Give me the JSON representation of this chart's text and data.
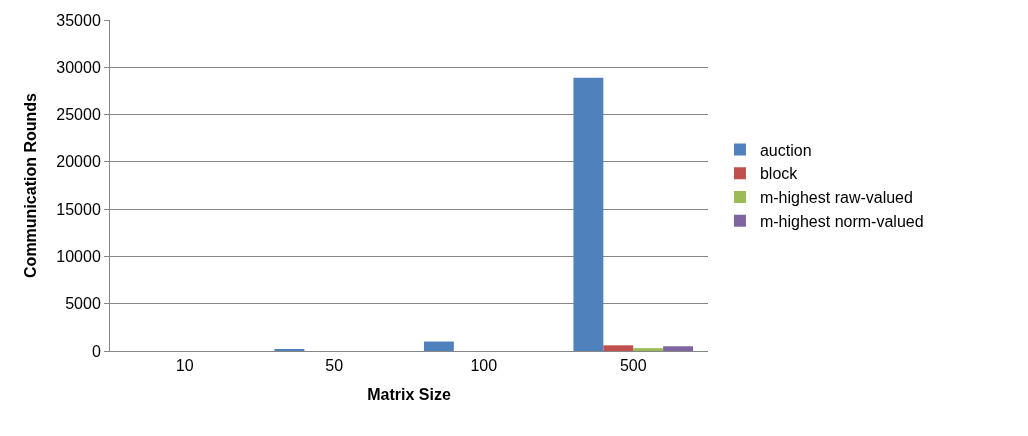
{
  "chart_data": {
    "type": "bar",
    "xlabel": "Matrix Size",
    "ylabel": "Communication Rounds",
    "categories": [
      "10",
      "50",
      "100",
      "500"
    ],
    "series": [
      {
        "name": "auction",
        "color": "#4f81bd",
        "values": [
          0,
          200,
          1000,
          28900
        ]
      },
      {
        "name": "block",
        "color": "#c0504d",
        "values": [
          0,
          0,
          0,
          600
        ]
      },
      {
        "name": "m-highest raw-valued",
        "color": "#9bbb59",
        "values": [
          0,
          0,
          0,
          300
        ]
      },
      {
        "name": "m-highest norm-valued",
        "color": "#8064a2",
        "values": [
          0,
          0,
          0,
          500
        ]
      }
    ],
    "ylim": [
      0,
      35000
    ],
    "yticks": [
      0,
      5000,
      10000,
      15000,
      20000,
      25000,
      30000,
      35000
    ],
    "grid": "y",
    "legend": "right"
  }
}
